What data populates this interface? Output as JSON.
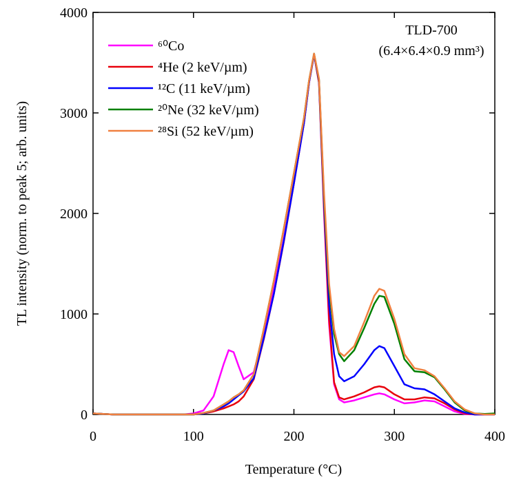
{
  "chart_data": {
    "type": "line",
    "xlabel": "Temperature (°C)",
    "ylabel": "TL intensity (norm. to peak 5; arb. units)",
    "annotations": [
      "TLD-700",
      "(6.4×6.4×0.9 mm³)"
    ],
    "x": [
      0,
      10,
      20,
      30,
      40,
      50,
      60,
      70,
      80,
      90,
      100,
      110,
      120,
      130,
      135,
      140,
      145,
      150,
      160,
      170,
      180,
      190,
      200,
      210,
      215,
      220,
      225,
      230,
      235,
      240,
      245,
      250,
      260,
      270,
      280,
      285,
      290,
      300,
      310,
      320,
      330,
      340,
      350,
      360,
      370,
      380,
      390,
      400
    ],
    "series": [
      {
        "name": "⁶⁰Co",
        "color": "#ff00ff",
        "values": [
          10,
          5,
          0,
          0,
          0,
          0,
          0,
          0,
          0,
          0,
          10,
          40,
          180,
          500,
          640,
          620,
          480,
          350,
          420,
          800,
          1250,
          1750,
          2300,
          2900,
          3300,
          3580,
          3300,
          2000,
          900,
          300,
          150,
          120,
          140,
          170,
          200,
          210,
          200,
          150,
          110,
          120,
          140,
          130,
          80,
          30,
          5,
          0,
          0,
          0
        ]
      },
      {
        "name": "⁴He (2 keV/µm)",
        "color": "#e8000b",
        "values": [
          10,
          5,
          0,
          0,
          0,
          0,
          0,
          0,
          0,
          0,
          0,
          10,
          30,
          60,
          80,
          100,
          130,
          180,
          350,
          750,
          1200,
          1720,
          2300,
          2900,
          3300,
          3580,
          3300,
          2050,
          950,
          320,
          170,
          150,
          180,
          220,
          270,
          280,
          270,
          200,
          150,
          150,
          170,
          160,
          110,
          50,
          10,
          0,
          0,
          0
        ]
      },
      {
        "name": "¹²C (11 keV/µm)",
        "color": "#0000ff",
        "values": [
          10,
          5,
          0,
          0,
          0,
          0,
          0,
          0,
          0,
          0,
          0,
          10,
          40,
          80,
          110,
          150,
          190,
          230,
          360,
          760,
          1200,
          1730,
          2300,
          2900,
          3300,
          3580,
          3320,
          2100,
          1100,
          600,
          380,
          330,
          380,
          500,
          640,
          680,
          660,
          480,
          300,
          260,
          250,
          200,
          130,
          60,
          20,
          0,
          0,
          0
        ]
      },
      {
        "name": "²⁰Ne (32 keV/µm)",
        "color": "#008000",
        "values": [
          10,
          5,
          0,
          0,
          0,
          0,
          0,
          0,
          0,
          0,
          0,
          15,
          40,
          100,
          130,
          170,
          200,
          240,
          400,
          850,
          1330,
          1850,
          2400,
          2950,
          3320,
          3590,
          3330,
          2150,
          1250,
          800,
          600,
          530,
          640,
          860,
          1100,
          1180,
          1170,
          900,
          550,
          430,
          420,
          370,
          250,
          120,
          40,
          10,
          5,
          10
        ]
      },
      {
        "name": "²⁸Si (52 keV/µm)",
        "color": "#f08040",
        "values": [
          10,
          5,
          0,
          0,
          0,
          0,
          0,
          0,
          0,
          0,
          0,
          15,
          40,
          100,
          130,
          170,
          200,
          240,
          400,
          850,
          1330,
          1850,
          2400,
          2950,
          3320,
          3590,
          3340,
          2200,
          1300,
          850,
          620,
          580,
          680,
          920,
          1180,
          1250,
          1230,
          950,
          600,
          460,
          440,
          380,
          260,
          130,
          50,
          10,
          0,
          0
        ]
      }
    ],
    "xlim": [
      0,
      400
    ],
    "xticks": [
      0,
      100,
      200,
      300,
      400
    ],
    "ylim": [
      0,
      4000
    ],
    "yticks": [
      0,
      1000,
      2000,
      3000,
      4000
    ],
    "legend": "upper left"
  }
}
